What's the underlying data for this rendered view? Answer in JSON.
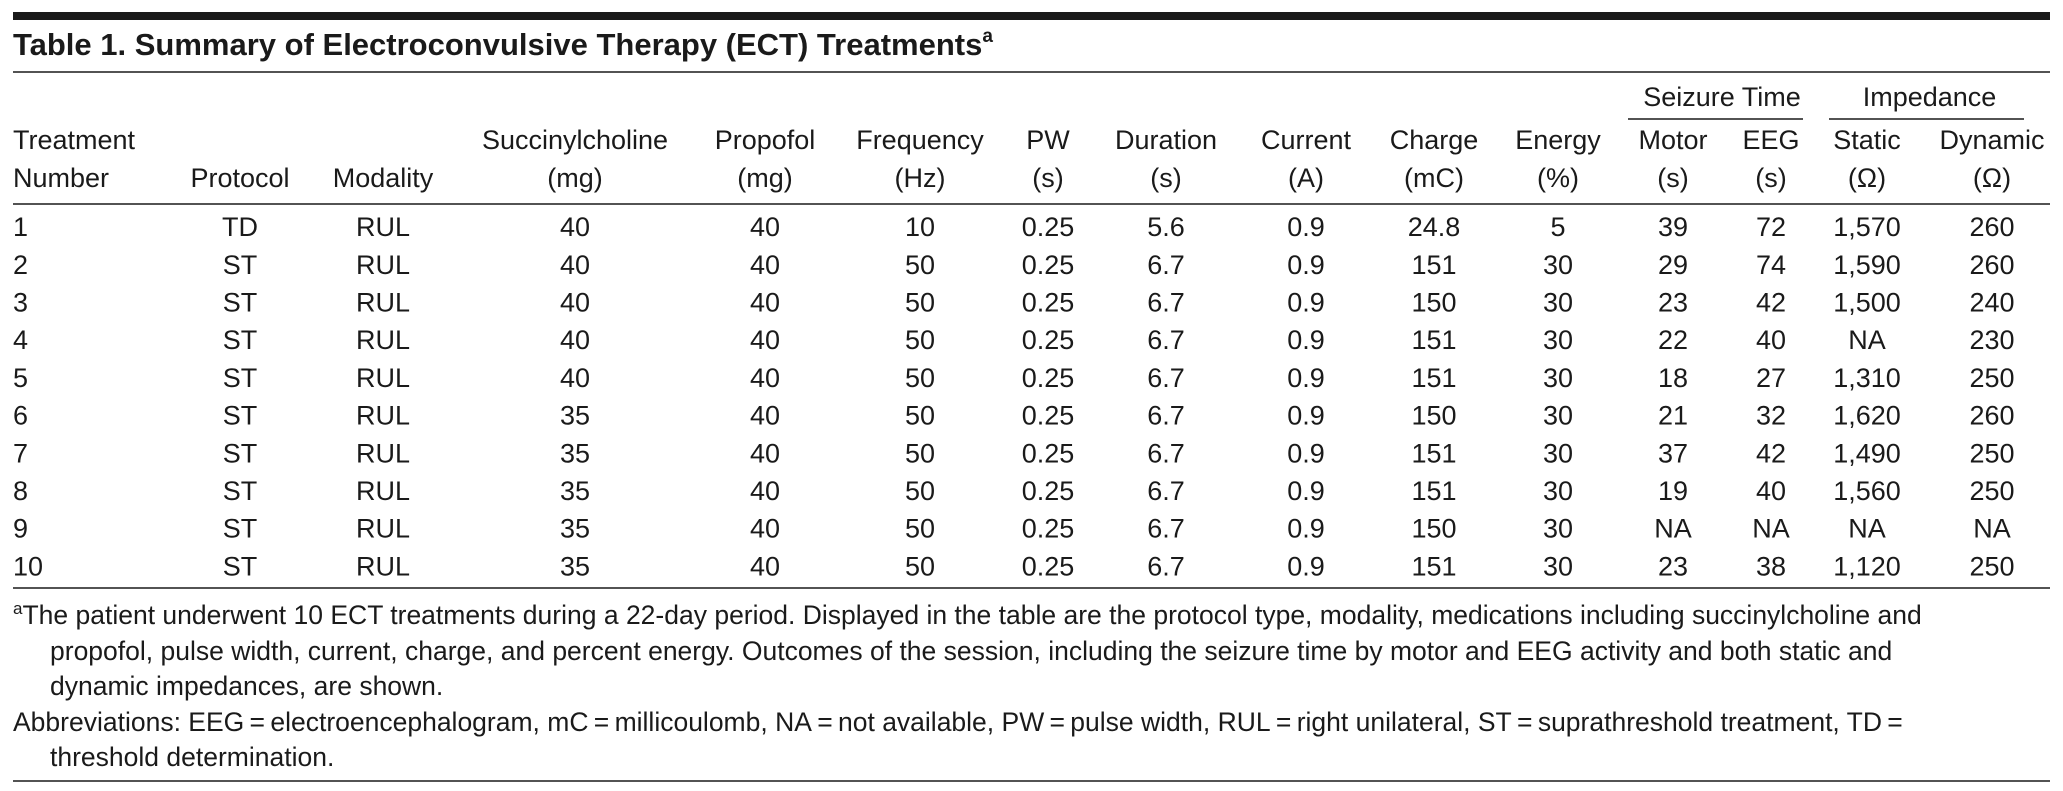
{
  "title": {
    "text": "Table 1. Summary of Electroconvulsive Therapy (ECT) Treatments",
    "superscript": "a"
  },
  "table": {
    "header_groups": [
      {
        "label": "Seizure Time",
        "columns": [
          11,
          12
        ]
      },
      {
        "label": "Impedance",
        "columns": [
          13,
          14
        ]
      }
    ],
    "columns": [
      [
        "Treatment",
        "Number"
      ],
      [
        "Protocol"
      ],
      [
        "Modality"
      ],
      [
        "Succinylcholine",
        "(mg)"
      ],
      [
        "Propofol",
        "(mg)"
      ],
      [
        "Frequency",
        "(Hz)"
      ],
      [
        "PW",
        "(s)"
      ],
      [
        "Duration",
        "(s)"
      ],
      [
        "Current",
        "(A)"
      ],
      [
        "Charge",
        "(mC)"
      ],
      [
        "Energy",
        "(%)"
      ],
      [
        "Motor",
        "(s)"
      ],
      [
        "EEG",
        "(s)"
      ],
      [
        "Static",
        "(Ω)"
      ],
      [
        "Dynamic",
        "(Ω)"
      ]
    ],
    "rows": [
      [
        "1",
        "TD",
        "RUL",
        "40",
        "40",
        "10",
        "0.25",
        "5.6",
        "0.9",
        "24.8",
        "5",
        "39",
        "72",
        "1,570",
        "260"
      ],
      [
        "2",
        "ST",
        "RUL",
        "40",
        "40",
        "50",
        "0.25",
        "6.7",
        "0.9",
        "151",
        "30",
        "29",
        "74",
        "1,590",
        "260"
      ],
      [
        "3",
        "ST",
        "RUL",
        "40",
        "40",
        "50",
        "0.25",
        "6.7",
        "0.9",
        "150",
        "30",
        "23",
        "42",
        "1,500",
        "240"
      ],
      [
        "4",
        "ST",
        "RUL",
        "40",
        "40",
        "50",
        "0.25",
        "6.7",
        "0.9",
        "151",
        "30",
        "22",
        "40",
        "NA",
        "230"
      ],
      [
        "5",
        "ST",
        "RUL",
        "40",
        "40",
        "50",
        "0.25",
        "6.7",
        "0.9",
        "151",
        "30",
        "18",
        "27",
        "1,310",
        "250"
      ],
      [
        "6",
        "ST",
        "RUL",
        "35",
        "40",
        "50",
        "0.25",
        "6.7",
        "0.9",
        "150",
        "30",
        "21",
        "32",
        "1,620",
        "260"
      ],
      [
        "7",
        "ST",
        "RUL",
        "35",
        "40",
        "50",
        "0.25",
        "6.7",
        "0.9",
        "151",
        "30",
        "37",
        "42",
        "1,490",
        "250"
      ],
      [
        "8",
        "ST",
        "RUL",
        "35",
        "40",
        "50",
        "0.25",
        "6.7",
        "0.9",
        "151",
        "30",
        "19",
        "40",
        "1,560",
        "250"
      ],
      [
        "9",
        "ST",
        "RUL",
        "35",
        "40",
        "50",
        "0.25",
        "6.7",
        "0.9",
        "150",
        "30",
        "NA",
        "NA",
        "NA",
        "NA"
      ],
      [
        "10",
        "ST",
        "RUL",
        "35",
        "40",
        "50",
        "0.25",
        "6.7",
        "0.9",
        "151",
        "30",
        "23",
        "38",
        "1,120",
        "250"
      ]
    ]
  },
  "footnotes": [
    {
      "marker": "a",
      "text": "The patient underwent 10 ECT treatments during a 22-day period. Displayed in the table are the protocol type, modality, medications including succinylcholine and propofol, pulse width, current, charge, and percent energy. Outcomes of the session, including the seizure time by motor and EEG activity and both static and dynamic impedances, are shown."
    },
    {
      "text": "Abbreviations: EEG = electroencephalogram, mC = millicoulomb, NA = not available, PW = pulse width, RUL = right unilateral, ST = suprathreshold treatment, TD = threshold determination."
    }
  ]
}
